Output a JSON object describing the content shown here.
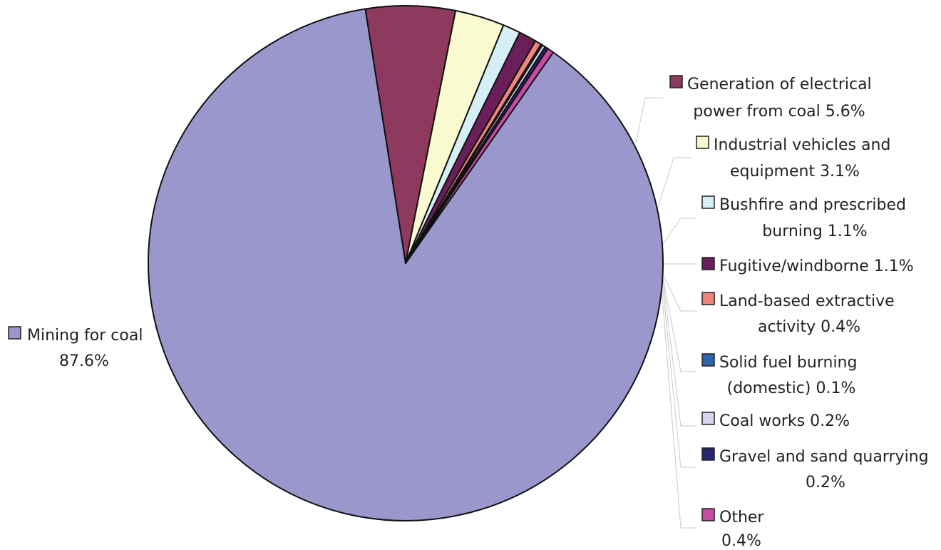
{
  "chart_data": {
    "type": "pie",
    "start_angle_deg": 55,
    "direction": "clockwise",
    "slices": [
      {
        "name": "Mining for coal",
        "value": 87.6,
        "label": [
          "Mining for coal",
          "87.6%"
        ],
        "color": "#9a97cc"
      },
      {
        "name": "Generation of electrical power from coal",
        "value": 5.6,
        "label": [
          "Generation of electrical",
          "power from coal 5.6%"
        ],
        "color": "#8e3a5e"
      },
      {
        "name": "Industrial vehicles and equipment",
        "value": 3.1,
        "label": [
          "Industrial vehicles and",
          "equipment 3.1%"
        ],
        "color": "#fafad0"
      },
      {
        "name": "Bushfire and prescribed burning",
        "value": 1.1,
        "label": [
          "Bushfire and prescribed",
          "burning 1.1%"
        ],
        "color": "#d6eef5"
      },
      {
        "name": "Fugitive/windborne",
        "value": 1.1,
        "label": [
          "Fugitive/windborne 1.1%"
        ],
        "color": "#6a1f5b"
      },
      {
        "name": "Land-based extractive activity",
        "value": 0.4,
        "label": [
          "Land-based extractive",
          "activity 0.4%"
        ],
        "color": "#f0857a"
      },
      {
        "name": "Solid fuel burning (domestic)",
        "value": 0.1,
        "label": [
          "Solid fuel burning",
          "(domestic) 0.1%"
        ],
        "color": "#2e64ad"
      },
      {
        "name": "Coal works",
        "value": 0.2,
        "label": [
          "Coal works 0.2%"
        ],
        "color": "#d9d5ec"
      },
      {
        "name": "Gravel and sand quarrying",
        "value": 0.2,
        "label": [
          "Gravel and sand quarrying",
          "0.2%"
        ],
        "color": "#262673"
      },
      {
        "name": "Other",
        "value": 0.4,
        "label": [
          "Other",
          "0.4%"
        ],
        "color": "#c94aa3"
      }
    ]
  }
}
